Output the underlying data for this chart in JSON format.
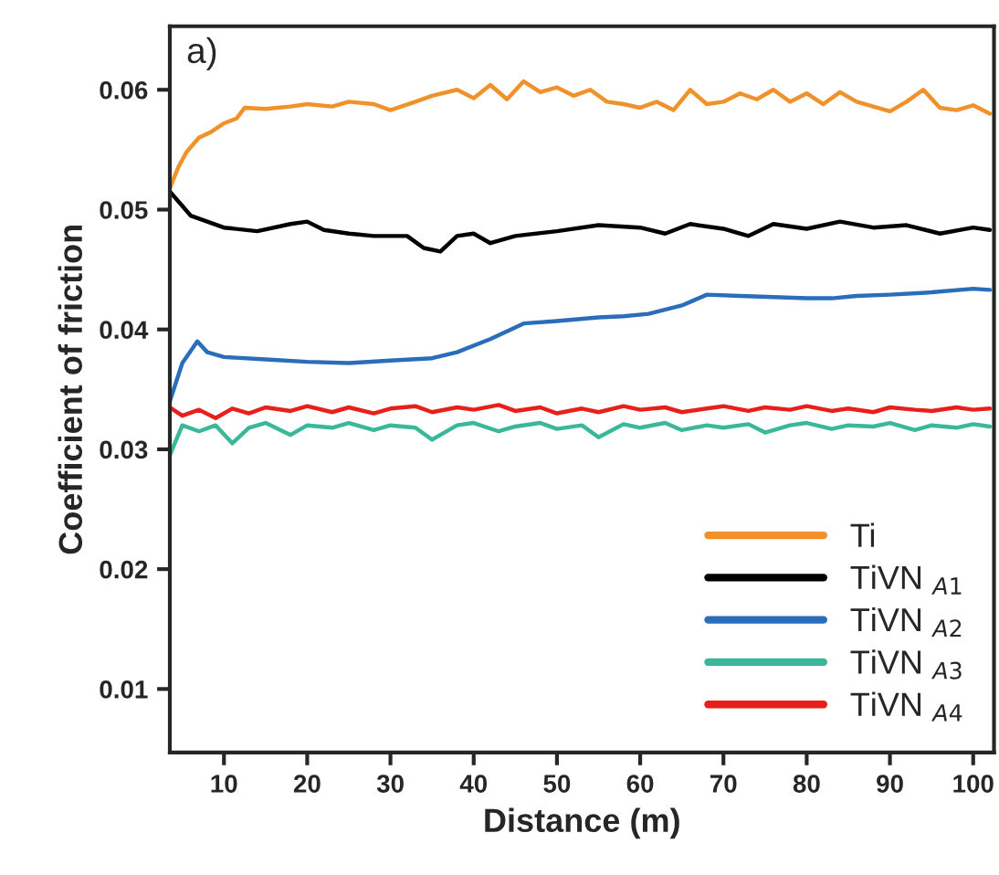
{
  "chart_data": {
    "type": "line",
    "xlabel": "Distance (m)",
    "ylabel": "Coefficient of friction",
    "annotations": [
      "a)"
    ],
    "xlim": [
      3.5,
      102.5
    ],
    "ylim": [
      0.0047,
      0.0653
    ],
    "xticks": [
      10,
      20,
      30,
      40,
      50,
      60,
      70,
      80,
      90,
      100
    ],
    "yticks": [
      0.01,
      0.02,
      0.03,
      0.04,
      0.05,
      0.06
    ],
    "grid": false,
    "legend": "bottom right",
    "marker": "none",
    "line_style": "solid",
    "series": [
      {
        "name": "Ti",
        "color": "#f0922b",
        "x": [
          3.5,
          4.5,
          5.5,
          7,
          8.5,
          10,
          11.5,
          12.5,
          15,
          18,
          20,
          23,
          25,
          28,
          30,
          33,
          35,
          38,
          40,
          42,
          44,
          46,
          48,
          50,
          52,
          54,
          56,
          58,
          60,
          62,
          64,
          66,
          68,
          70,
          72,
          74,
          76,
          78,
          80,
          82,
          84,
          86,
          88,
          90,
          92,
          94,
          96,
          98,
          100,
          102
        ],
        "values": [
          0.0518,
          0.0535,
          0.0548,
          0.056,
          0.0565,
          0.0572,
          0.0576,
          0.0585,
          0.0584,
          0.0586,
          0.0588,
          0.0586,
          0.059,
          0.0588,
          0.0583,
          0.059,
          0.0595,
          0.06,
          0.0593,
          0.0604,
          0.0592,
          0.0607,
          0.0598,
          0.0602,
          0.0595,
          0.06,
          0.059,
          0.0588,
          0.0585,
          0.059,
          0.0583,
          0.06,
          0.0588,
          0.059,
          0.0597,
          0.0592,
          0.06,
          0.059,
          0.0597,
          0.0588,
          0.0598,
          0.059,
          0.0586,
          0.0582,
          0.059,
          0.06,
          0.0585,
          0.0583,
          0.0587,
          0.058
        ]
      },
      {
        "name": "TiVN $_{A1}$",
        "color": "#000000",
        "x": [
          3.5,
          6,
          10,
          14,
          18,
          20,
          22,
          25,
          28,
          32,
          34,
          36,
          38,
          40,
          42,
          45,
          50,
          55,
          60,
          63,
          66,
          70,
          73,
          76,
          80,
          84,
          88,
          92,
          96,
          100,
          102
        ],
        "values": [
          0.0515,
          0.0495,
          0.0485,
          0.0482,
          0.0488,
          0.049,
          0.0483,
          0.048,
          0.0478,
          0.0478,
          0.0468,
          0.0465,
          0.0478,
          0.048,
          0.0472,
          0.0478,
          0.0482,
          0.0487,
          0.0485,
          0.048,
          0.0488,
          0.0484,
          0.0478,
          0.0488,
          0.0484,
          0.049,
          0.0485,
          0.0487,
          0.048,
          0.0485,
          0.0483
        ]
      },
      {
        "name": "TiVN $_{A2}$",
        "color": "#2a6ebb",
        "x": [
          3.5,
          5,
          6.8,
          8,
          10,
          15,
          20,
          25,
          30,
          35,
          38,
          42,
          46,
          50,
          55,
          58,
          61,
          65,
          68,
          72,
          76,
          80,
          83,
          86,
          90,
          95,
          100,
          102
        ],
        "values": [
          0.034,
          0.0372,
          0.039,
          0.0381,
          0.0377,
          0.0375,
          0.0373,
          0.0372,
          0.0374,
          0.0376,
          0.0381,
          0.0392,
          0.0405,
          0.0407,
          0.041,
          0.0411,
          0.0413,
          0.042,
          0.0429,
          0.0428,
          0.0427,
          0.0426,
          0.0426,
          0.0428,
          0.0429,
          0.0431,
          0.0434,
          0.0433
        ]
      },
      {
        "name": "TiVN $_{A3}$",
        "color": "#3bb89a",
        "x": [
          3.5,
          5,
          7,
          9,
          11,
          13,
          15,
          18,
          20,
          23,
          25,
          28,
          30,
          33,
          35,
          38,
          40,
          43,
          45,
          48,
          50,
          53,
          55,
          58,
          60,
          63,
          65,
          68,
          70,
          73,
          75,
          78,
          80,
          83,
          85,
          88,
          90,
          93,
          95,
          98,
          100,
          102
        ],
        "values": [
          0.0295,
          0.032,
          0.0315,
          0.032,
          0.0305,
          0.0318,
          0.0322,
          0.0312,
          0.032,
          0.0318,
          0.0322,
          0.0316,
          0.032,
          0.0318,
          0.0308,
          0.032,
          0.0322,
          0.0315,
          0.0319,
          0.0322,
          0.0317,
          0.032,
          0.031,
          0.0321,
          0.0318,
          0.0322,
          0.0316,
          0.032,
          0.0318,
          0.0321,
          0.0314,
          0.032,
          0.0322,
          0.0317,
          0.032,
          0.0319,
          0.0322,
          0.0316,
          0.032,
          0.0318,
          0.0321,
          0.0319
        ]
      },
      {
        "name": "TiVN $_{A4}$",
        "color": "#e8201c",
        "x": [
          3.5,
          5,
          7,
          9,
          11,
          13,
          15,
          18,
          20,
          23,
          25,
          28,
          30,
          33,
          35,
          38,
          40,
          43,
          45,
          48,
          50,
          53,
          55,
          58,
          60,
          63,
          65,
          68,
          70,
          73,
          75,
          78,
          80,
          83,
          85,
          88,
          90,
          93,
          95,
          98,
          100,
          102
        ],
        "values": [
          0.0335,
          0.0328,
          0.0333,
          0.0326,
          0.0334,
          0.033,
          0.0335,
          0.0332,
          0.0336,
          0.0331,
          0.0335,
          0.033,
          0.0334,
          0.0336,
          0.0331,
          0.0335,
          0.0333,
          0.0337,
          0.0332,
          0.0335,
          0.033,
          0.0334,
          0.0331,
          0.0336,
          0.0333,
          0.0335,
          0.0331,
          0.0334,
          0.0336,
          0.0332,
          0.0335,
          0.0333,
          0.0336,
          0.0332,
          0.0334,
          0.0331,
          0.0335,
          0.0333,
          0.0332,
          0.0335,
          0.0333,
          0.0334
        ]
      }
    ]
  }
}
